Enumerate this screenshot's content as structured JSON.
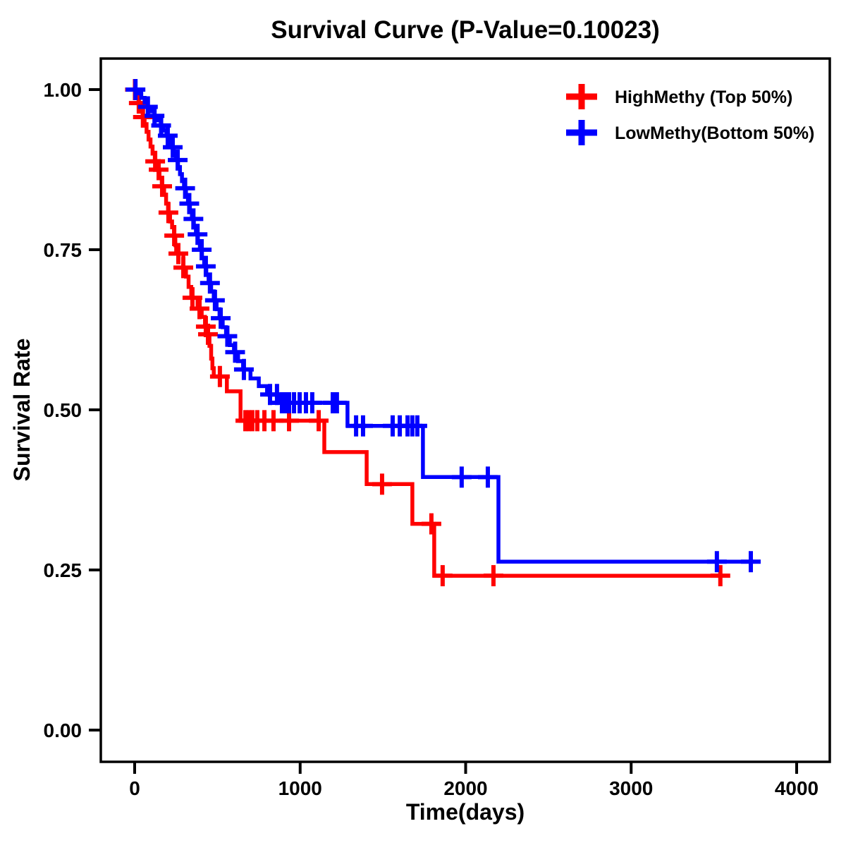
{
  "title": "Survival Curve (P-Value=0.10023)",
  "axes": {
    "x_label": "Time(days)",
    "y_label": "Survival Rate",
    "x_ticks": [
      {
        "label": "0",
        "value": 0
      },
      {
        "label": "1000",
        "value": 1000
      },
      {
        "label": "2000",
        "value": 2000
      },
      {
        "label": "3000",
        "value": 3000
      },
      {
        "label": "4000",
        "value": 4000
      }
    ],
    "y_ticks": [
      {
        "label": "0.00",
        "value": 0.0
      },
      {
        "label": "0.25",
        "value": 0.25
      },
      {
        "label": "0.50",
        "value": 0.5
      },
      {
        "label": "0.75",
        "value": 0.75
      },
      {
        "label": "1.00",
        "value": 1.0
      }
    ]
  },
  "legend": [
    {
      "label": "HighMethy (Top 50%)",
      "color": "#FF0000",
      "marker": "plus"
    },
    {
      "label": "LowMethy(Bottom 50%)",
      "color": "#0000FF",
      "marker": "plus"
    }
  ],
  "colors": {
    "high_methy": "#FF0000",
    "low_methy": "#0000FF",
    "axis": "#000000",
    "background": "#FFFFFF"
  },
  "chart_data": {
    "type": "line",
    "subtype": "kaplan-meier-step-curve",
    "title": "Survival Curve (P-Value=0.10023)",
    "p_value": "0.10023",
    "xlabel": "Time(days)",
    "ylabel": "Survival Rate",
    "xlim": [
      0,
      4000
    ],
    "ylim": [
      0.0,
      1.0
    ],
    "grid": false,
    "legend_position": "top-right",
    "series": [
      {
        "name": "HighMethy (Top 50%)",
        "color": "#FF0000",
        "end_time": 3595,
        "steps": [
          [
            0,
            1.0
          ],
          [
            12,
            0.99
          ],
          [
            24,
            0.979
          ],
          [
            36,
            0.968
          ],
          [
            48,
            0.957
          ],
          [
            60,
            0.946
          ],
          [
            72,
            0.934
          ],
          [
            84,
            0.922
          ],
          [
            96,
            0.911
          ],
          [
            108,
            0.9
          ],
          [
            122,
            0.888
          ],
          [
            136,
            0.875
          ],
          [
            150,
            0.862
          ],
          [
            164,
            0.849
          ],
          [
            178,
            0.836
          ],
          [
            190,
            0.822
          ],
          [
            202,
            0.808
          ],
          [
            214,
            0.794
          ],
          [
            226,
            0.785
          ],
          [
            238,
            0.772
          ],
          [
            246,
            0.757
          ],
          [
            251,
            0.744
          ],
          [
            294,
            0.722
          ],
          [
            310,
            0.708
          ],
          [
            326,
            0.692
          ],
          [
            342,
            0.675
          ],
          [
            380,
            0.658
          ],
          [
            405,
            0.645
          ],
          [
            425,
            0.63
          ],
          [
            440,
            0.618
          ],
          [
            452,
            0.6
          ],
          [
            462,
            0.58
          ],
          [
            470,
            0.565
          ],
          [
            478,
            0.552
          ],
          [
            557,
            0.529
          ],
          [
            640,
            0.483
          ],
          [
            1146,
            0.434
          ],
          [
            1402,
            0.384
          ],
          [
            1678,
            0.322
          ],
          [
            1810,
            0.241
          ]
        ],
        "censor_times": [
          2,
          25,
          50,
          124,
          145,
          166,
          204,
          239,
          264,
          294,
          349,
          392,
          430,
          443,
          515,
          669,
          690,
          711,
          741,
          784,
          839,
          933,
          1112,
          1495,
          1793,
          1861,
          2168,
          3539
        ]
      },
      {
        "name": "LowMethy(Bottom 50%)",
        "color": "#0000FF",
        "end_time": 3778,
        "steps": [
          [
            0,
            1.0
          ],
          [
            20,
            0.994
          ],
          [
            40,
            0.987
          ],
          [
            60,
            0.98
          ],
          [
            80,
            0.973
          ],
          [
            100,
            0.966
          ],
          [
            120,
            0.959
          ],
          [
            140,
            0.952
          ],
          [
            158,
            0.944
          ],
          [
            175,
            0.936
          ],
          [
            192,
            0.928
          ],
          [
            208,
            0.919
          ],
          [
            222,
            0.91
          ],
          [
            236,
            0.9
          ],
          [
            250,
            0.89
          ],
          [
            262,
            0.879
          ],
          [
            274,
            0.868
          ],
          [
            286,
            0.857
          ],
          [
            298,
            0.846
          ],
          [
            310,
            0.834
          ],
          [
            322,
            0.822
          ],
          [
            334,
            0.81
          ],
          [
            346,
            0.798
          ],
          [
            358,
            0.786
          ],
          [
            370,
            0.774
          ],
          [
            382,
            0.762
          ],
          [
            394,
            0.75
          ],
          [
            407,
            0.737
          ],
          [
            420,
            0.724
          ],
          [
            433,
            0.711
          ],
          [
            447,
            0.698
          ],
          [
            462,
            0.685
          ],
          [
            478,
            0.671
          ],
          [
            495,
            0.657
          ],
          [
            513,
            0.643
          ],
          [
            532,
            0.629
          ],
          [
            552,
            0.615
          ],
          [
            575,
            0.601
          ],
          [
            600,
            0.59
          ],
          [
            625,
            0.576
          ],
          [
            655,
            0.563
          ],
          [
            700,
            0.549
          ],
          [
            750,
            0.537
          ],
          [
            800,
            0.524
          ],
          [
            869,
            0.511
          ],
          [
            1286,
            0.475
          ],
          [
            1742,
            0.395
          ],
          [
            2198,
            0.263
          ]
        ],
        "censor_times": [
          5,
          80,
          120,
          160,
          200,
          230,
          260,
          305,
          330,
          355,
          380,
          405,
          430,
          455,
          485,
          520,
          560,
          607,
          660,
          818,
          860,
          890,
          911,
          933,
          963,
          997,
          1035,
          1073,
          1197,
          1222,
          1338,
          1380,
          1559,
          1602,
          1649,
          1678,
          1708,
          1976,
          2134,
          3518,
          3723
        ]
      }
    ]
  }
}
